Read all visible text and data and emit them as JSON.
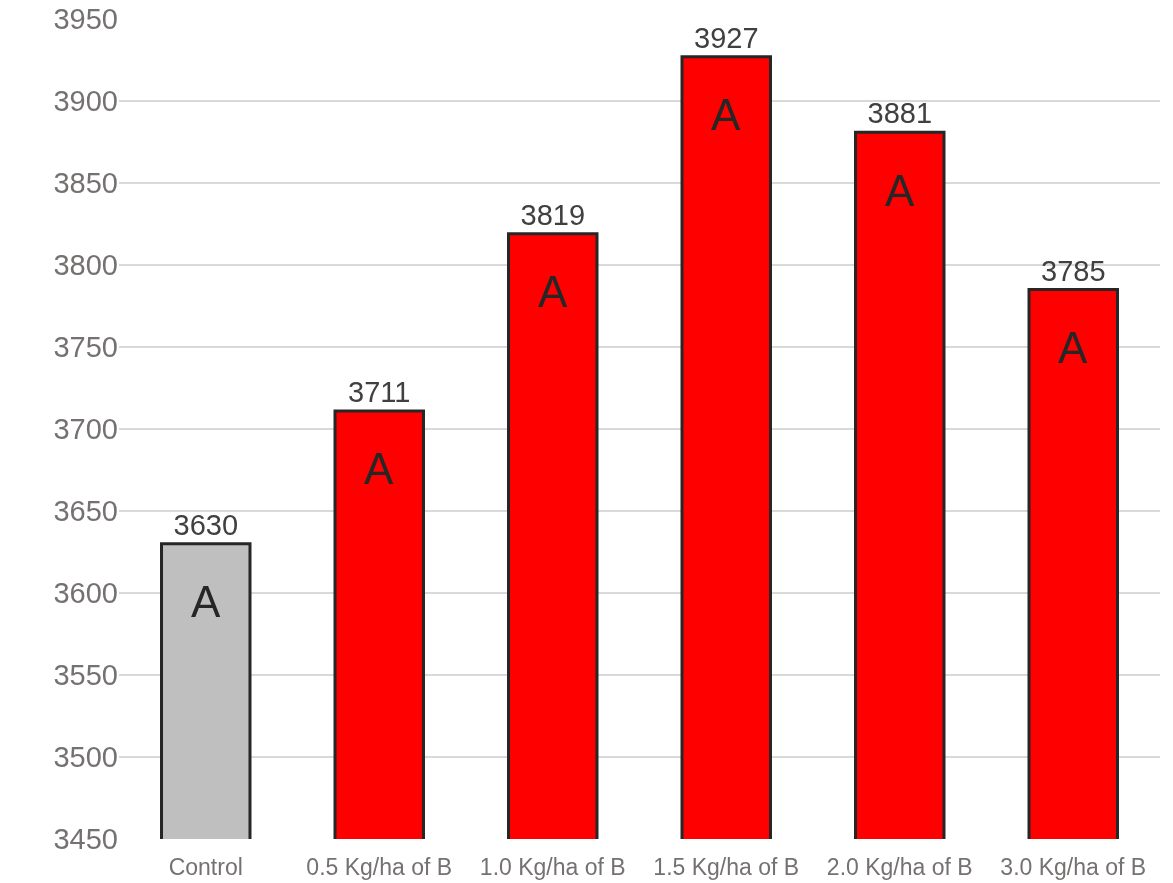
{
  "chart_data": {
    "type": "bar",
    "categories": [
      "Control",
      "0.5 Kg/ha of B",
      "1.0 Kg/ha of B",
      "1.5 Kg/ha of B",
      "2.0 Kg/ha of B",
      "3.0 Kg/ha of B"
    ],
    "values": [
      3630,
      3711,
      3819,
      3927,
      3881,
      3785
    ],
    "colors": [
      "#bfbfbf",
      "#ff0000",
      "#ff0000",
      "#ff0000",
      "#ff0000",
      "#ff0000"
    ],
    "ylim": [
      3450,
      3950
    ],
    "yticks": [
      3450,
      3500,
      3550,
      3600,
      3650,
      3700,
      3750,
      3800,
      3850,
      3900,
      3950
    ],
    "grid": "y",
    "data_labels": true,
    "annotations": [
      {
        "text": "A",
        "x": "Control",
        "y": 3630
      },
      {
        "text": "A",
        "x": "0.5 Kg/ha of B",
        "y": 3711
      },
      {
        "text": "A",
        "x": "1.0 Kg/ha of B",
        "y": 3819
      },
      {
        "text": "A",
        "x": "1.5 Kg/ha of B",
        "y": 3927
      },
      {
        "text": "A",
        "x": "2.0 Kg/ha of B",
        "y": 3881
      },
      {
        "text": "A",
        "x": "3.0 Kg/ha of B",
        "y": 3785
      }
    ]
  }
}
